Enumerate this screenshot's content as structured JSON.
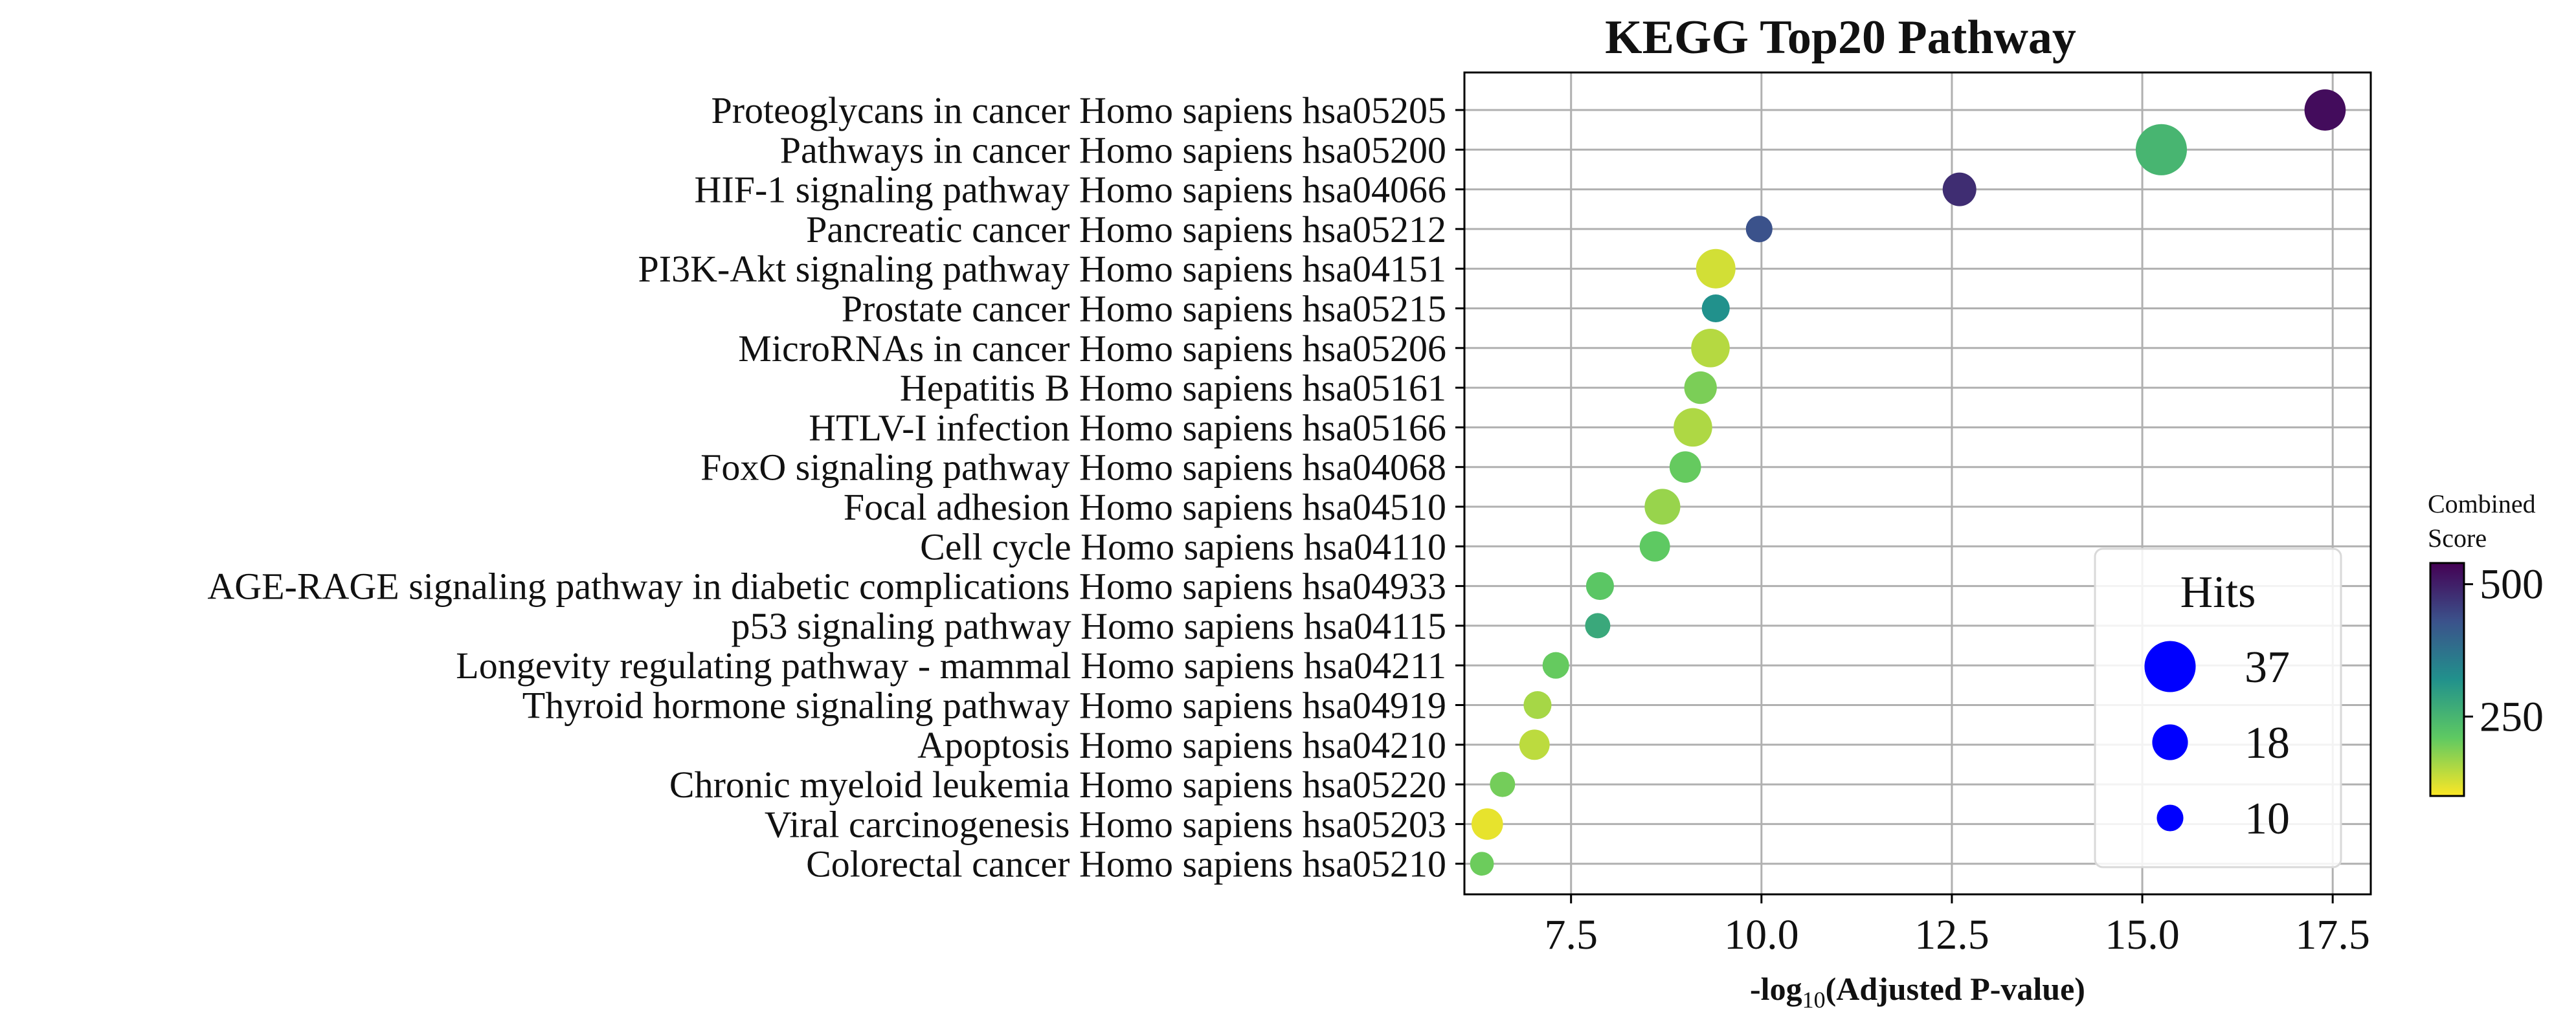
{
  "chart_data": {
    "type": "scatter",
    "title": "KEGG Top20 Pathway",
    "xlabel_prefix": "-log",
    "xlabel_sub": "10",
    "xlabel_suffix": "(Adjusted P-value)",
    "xlim": [
      6.1,
      18.0
    ],
    "xticks": [
      7.5,
      10.0,
      12.5,
      15.0,
      17.5
    ],
    "xtick_labels": [
      "7.5",
      "10.0",
      "12.5",
      "15.0",
      "17.5"
    ],
    "grid": true,
    "points": [
      {
        "label": "Proteoglycans in cancer Homo sapiens hsa05205",
        "x": 17.4,
        "hits": 24,
        "score": 525
      },
      {
        "label": "Pathways in cancer Homo sapiens hsa05200",
        "x": 15.25,
        "hits": 37,
        "score": 250
      },
      {
        "label": "HIF-1 signaling pathway Homo sapiens hsa04066",
        "x": 12.6,
        "hits": 16,
        "score": 480
      },
      {
        "label": "Pancreatic cancer Homo sapiens hsa05212",
        "x": 9.97,
        "hits": 10,
        "score": 430
      },
      {
        "label": "PI3K-Akt signaling pathway Homo sapiens hsa04151",
        "x": 9.4,
        "hits": 22,
        "score": 130
      },
      {
        "label": "Prostate cancer Homo sapiens hsa05215",
        "x": 9.4,
        "hits": 11,
        "score": 320
      },
      {
        "label": "MicroRNAs in cancer Homo sapiens hsa05206",
        "x": 9.33,
        "hits": 21,
        "score": 150
      },
      {
        "label": "Hepatitis B Homo sapiens hsa05161",
        "x": 9.2,
        "hits": 15,
        "score": 190
      },
      {
        "label": "HTLV-I infection Homo sapiens hsa05166",
        "x": 9.1,
        "hits": 21,
        "score": 155
      },
      {
        "label": "FoxO signaling pathway Homo sapiens hsa04068",
        "x": 9.0,
        "hits": 14,
        "score": 205
      },
      {
        "label": "Focal adhesion Homo sapiens hsa04510",
        "x": 8.7,
        "hits": 18,
        "score": 170
      },
      {
        "label": "Cell cycle Homo sapiens hsa04110",
        "x": 8.6,
        "hits": 13,
        "score": 210
      },
      {
        "label": "AGE-RAGE signaling pathway in diabetic complications Homo sapiens hsa04933",
        "x": 7.88,
        "hits": 11,
        "score": 215
      },
      {
        "label": "p53 signaling pathway Homo sapiens hsa04115",
        "x": 7.85,
        "hits": 9,
        "score": 275
      },
      {
        "label": "Longevity regulating pathway - mammal Homo sapiens hsa04211",
        "x": 7.3,
        "hits": 10,
        "score": 205
      },
      {
        "label": "Thyroid hormone signaling pathway Homo sapiens hsa04919",
        "x": 7.06,
        "hits": 11,
        "score": 160
      },
      {
        "label": "Apoptosis Homo sapiens hsa04210",
        "x": 7.02,
        "hits": 13,
        "score": 145
      },
      {
        "label": "Chronic myeloid leukemia Homo sapiens hsa05220",
        "x": 6.6,
        "hits": 9,
        "score": 195
      },
      {
        "label": "Viral carcinogenesis Homo sapiens hsa05203",
        "x": 6.4,
        "hits": 14,
        "score": 115
      },
      {
        "label": "Colorectal cancer Homo sapiens hsa05210",
        "x": 6.33,
        "hits": 8,
        "score": 200
      }
    ],
    "legend": {
      "title": "Hits",
      "placement": "lower-right",
      "color": "#0000ff",
      "entries": [
        {
          "value": 37,
          "label": "37"
        },
        {
          "value": 18,
          "label": "18"
        },
        {
          "value": 10,
          "label": "10"
        }
      ]
    },
    "colorbar": {
      "title_line1": "Combined",
      "title_line2": "Score",
      "colormap": "viridis_r",
      "range": [
        100,
        540
      ],
      "ticks": [
        250,
        500
      ],
      "tick_labels": [
        "250",
        "500"
      ]
    }
  }
}
